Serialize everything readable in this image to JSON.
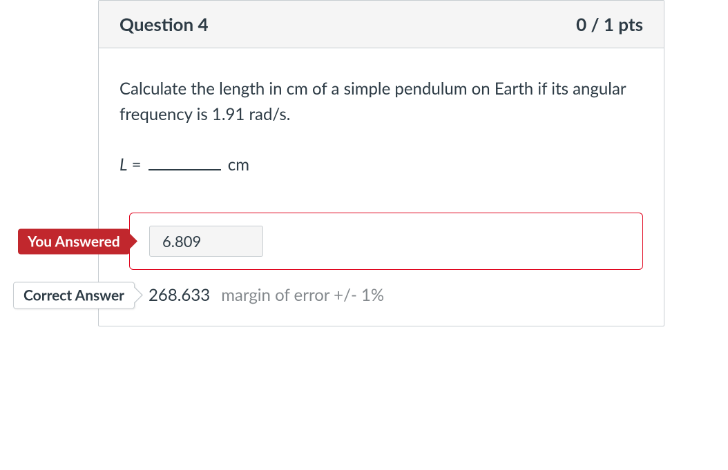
{
  "question": {
    "title": "Question 4",
    "points": "0 / 1 pts",
    "prompt": "Calculate the length in cm of a simple pendulum on Earth if its angular frequency is 1.91 rad/s.",
    "formula": {
      "variable": "L",
      "equals": " = ",
      "unit": " cm"
    }
  },
  "badges": {
    "you_answered": "You Answered",
    "correct_answer": "Correct Answer"
  },
  "answers": {
    "user": "6.809",
    "correct": "268.633",
    "margin": "margin of error +/- 1%"
  },
  "colors": {
    "header_bg": "#f5f5f5",
    "border": "#c7cdd1",
    "text": "#2d3b45",
    "badge_red": "#c1272d",
    "error_border": "#e0061f",
    "muted": "#84898d",
    "answer_box_bg": "#f5f5f5"
  }
}
